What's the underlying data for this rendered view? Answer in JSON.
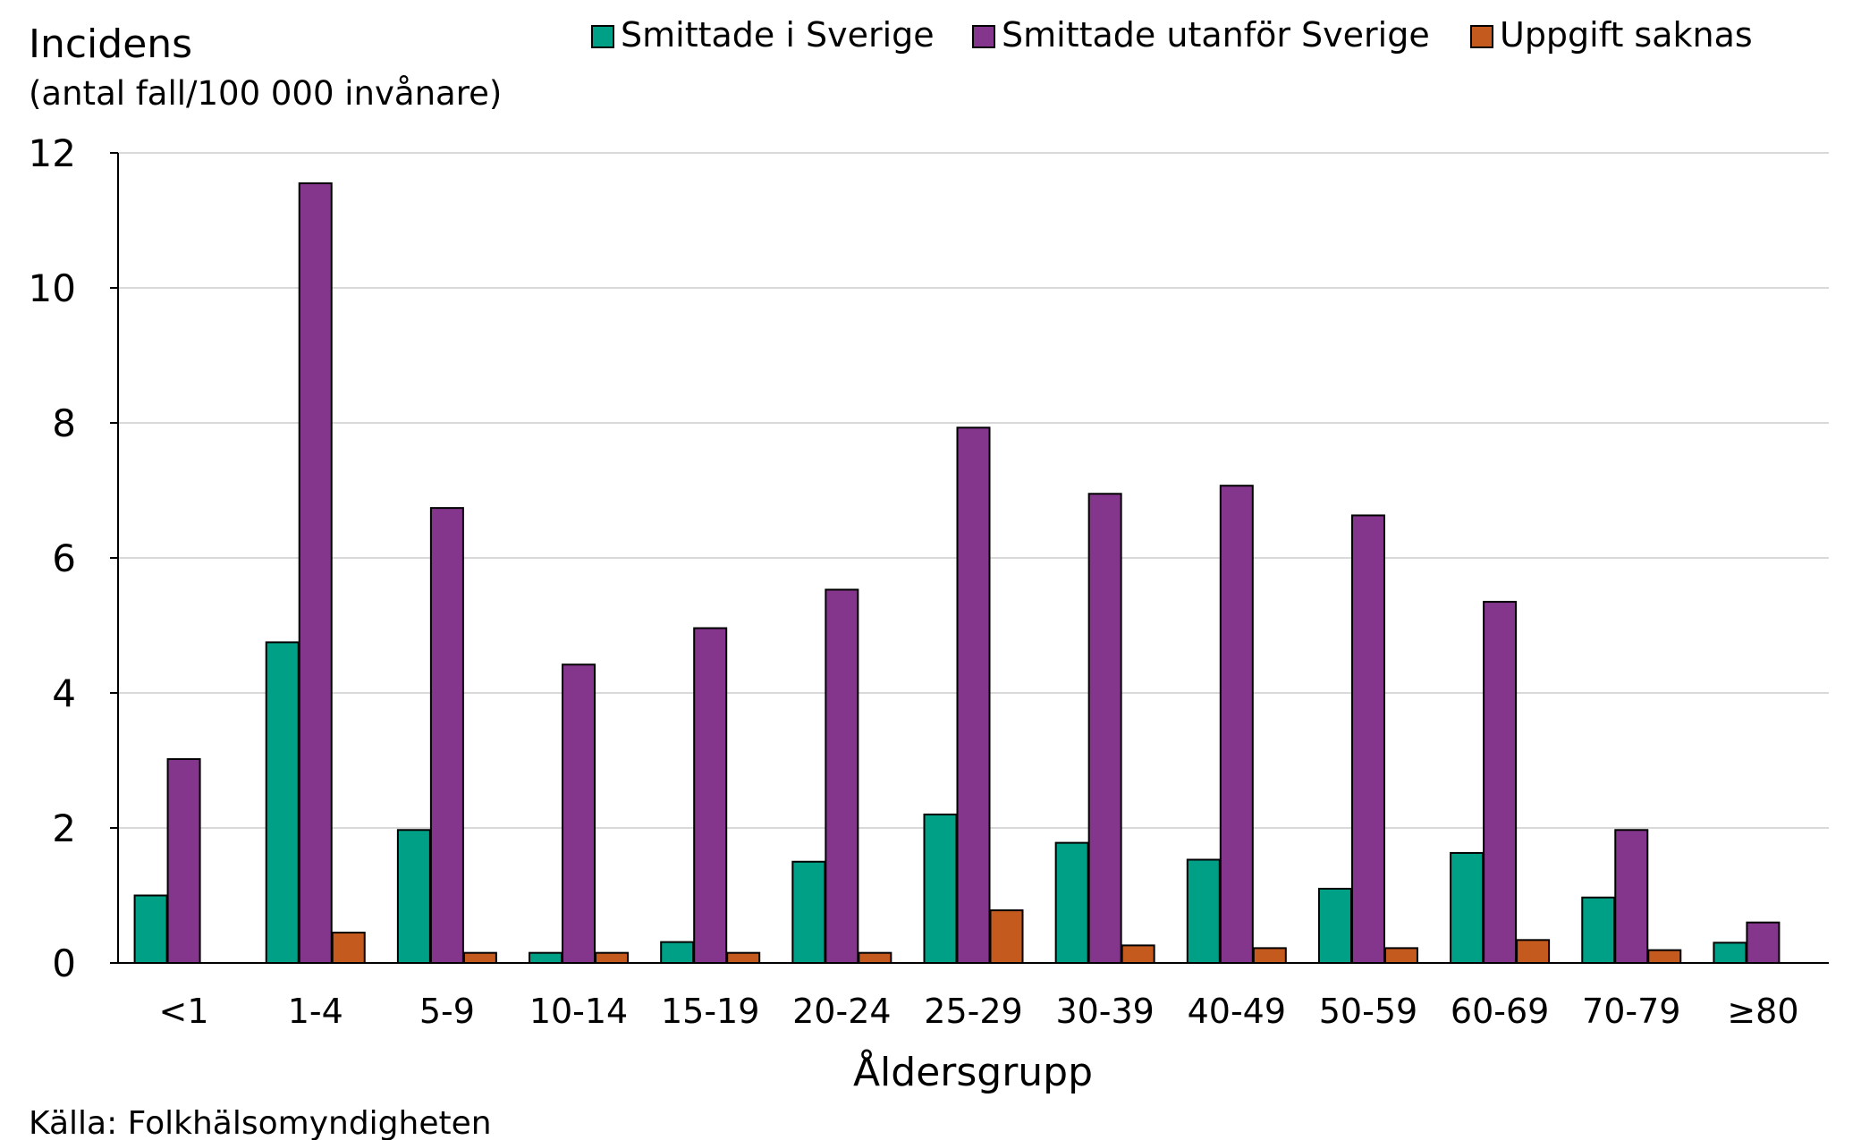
{
  "chart_data": {
    "type": "bar",
    "title": "Incidens",
    "subtitle": "(antal fall/100 000 invånare)",
    "xlabel": "Åldersgrupp",
    "ylabel": "Incidens (antal fall/100 000 invånare)",
    "source": "Källa: Folkhälsomyndigheten",
    "categories": [
      "<1",
      "1-4",
      "5-9",
      "10-14",
      "15-19",
      "20-24",
      "25-29",
      "30-39",
      "40-49",
      "50-59",
      "60-69",
      "70-79",
      "≥80"
    ],
    "ylim": [
      0,
      12
    ],
    "yticks": [
      0,
      2,
      4,
      6,
      8,
      10,
      12
    ],
    "grid": true,
    "legend_position": "top",
    "series": [
      {
        "name": "Smittade i Sverige",
        "color": "#00a087",
        "values": [
          1.0,
          4.75,
          1.97,
          0.15,
          0.31,
          1.5,
          2.2,
          1.78,
          1.53,
          1.1,
          1.63,
          0.97,
          0.3
        ]
      },
      {
        "name": "Smittade utanför Sverige",
        "color": "#84368c",
        "values": [
          3.02,
          11.55,
          6.74,
          4.42,
          4.96,
          5.53,
          7.93,
          6.95,
          7.07,
          6.63,
          5.35,
          1.97,
          0.6
        ]
      },
      {
        "name": "Uppgift saknas",
        "color": "#c55a1f",
        "values": [
          0,
          0.45,
          0.15,
          0.15,
          0.15,
          0.15,
          0.78,
          0.26,
          0.22,
          0.22,
          0.34,
          0.19,
          0
        ]
      }
    ]
  }
}
